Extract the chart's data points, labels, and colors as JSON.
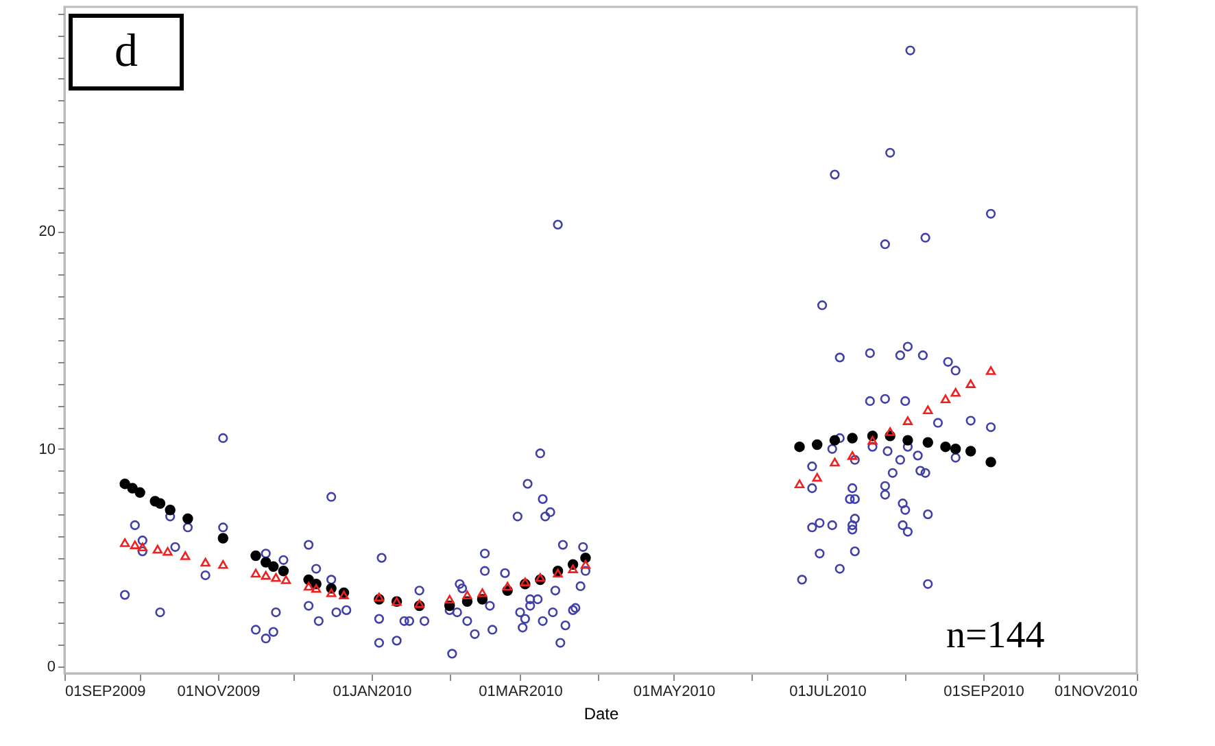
{
  "chart_data": {
    "type": "scatter",
    "xlabel": "Date",
    "annotations": [
      "d",
      "n=144"
    ],
    "xlim": [
      "2009-09-01",
      "2010-11-01"
    ],
    "xticks": [
      {
        "value": "2009-09-01",
        "label": "01SEP2009"
      },
      {
        "value": "2009-10-01",
        "label": null
      },
      {
        "value": "2009-11-01",
        "label": "01NOV2009"
      },
      {
        "value": "2009-12-01",
        "label": null
      },
      {
        "value": "2010-01-01",
        "label": "01JAN2010"
      },
      {
        "value": "2010-02-01",
        "label": null
      },
      {
        "value": "2010-03-01",
        "label": "01MAR2010"
      },
      {
        "value": "2010-04-01",
        "label": null
      },
      {
        "value": "2010-05-01",
        "label": "01MAY2010"
      },
      {
        "value": "2010-06-01",
        "label": null
      },
      {
        "value": "2010-07-01",
        "label": "01JUL2010"
      },
      {
        "value": "2010-08-01",
        "label": null
      },
      {
        "value": "2010-09-01",
        "label": "01SEP2010"
      },
      {
        "value": "2010-10-01",
        "label": null
      },
      {
        "value": "2010-11-01",
        "label": "01NOV2010"
      }
    ],
    "ylim": [
      -0.3,
      30.3
    ],
    "yticks": [
      0,
      {
        "value": 1,
        "label": null
      },
      {
        "value": 2,
        "label": null
      },
      {
        "value": 3,
        "label": null
      },
      {
        "value": 4,
        "label": null
      },
      {
        "value": 5,
        "label": null
      },
      {
        "value": 6,
        "label": null
      },
      {
        "value": 7,
        "label": null
      },
      {
        "value": 8,
        "label": null
      },
      {
        "value": 9,
        "label": null
      },
      10,
      {
        "value": 11,
        "label": null
      },
      {
        "value": 12,
        "label": null
      },
      {
        "value": 13,
        "label": null
      },
      {
        "value": 14,
        "label": null
      },
      {
        "value": 15,
        "label": null
      },
      {
        "value": 16,
        "label": null
      },
      {
        "value": 17,
        "label": null
      },
      {
        "value": 18,
        "label": null
      },
      {
        "value": 19,
        "label": null
      },
      20,
      {
        "value": 21,
        "label": null
      },
      {
        "value": 22,
        "label": null
      },
      {
        "value": 23,
        "label": null
      },
      {
        "value": 24,
        "label": null
      },
      {
        "value": 25,
        "label": null
      },
      {
        "value": 26,
        "label": null
      },
      {
        "value": 27,
        "label": null
      },
      {
        "value": 28,
        "label": null
      },
      {
        "value": 29,
        "label": null
      },
      {
        "value": 30,
        "label": null
      }
    ],
    "grid": false,
    "series": [
      {
        "color": "#4040a8",
        "marker": "circle",
        "x": [
          "2009-09-25",
          "2009-09-29",
          "2009-10-02",
          "2009-10-02",
          "2009-10-09",
          "2009-10-13",
          "2009-10-15",
          "2009-10-20",
          "2009-10-27",
          "2009-11-03",
          "2009-11-03",
          "2009-11-16",
          "2009-11-20",
          "2009-11-20",
          "2009-11-23",
          "2009-11-24",
          "2009-11-27",
          "2009-12-07",
          "2009-12-07",
          "2009-12-10",
          "2009-12-11",
          "2009-12-16",
          "2009-12-16",
          "2009-12-18",
          "2009-12-22",
          "2010-01-04",
          "2010-01-04",
          "2010-01-05",
          "2010-01-11",
          "2010-01-14",
          "2010-01-16",
          "2010-01-20",
          "2010-01-22",
          "2010-02-01",
          "2010-02-02",
          "2010-02-04",
          "2010-02-05",
          "2010-02-06",
          "2010-02-08",
          "2010-02-11",
          "2010-02-15",
          "2010-02-15",
          "2010-02-17",
          "2010-02-18",
          "2010-02-23",
          "2010-02-28",
          "2010-03-01",
          "2010-03-02",
          "2010-03-03",
          "2010-03-04",
          "2010-03-05",
          "2010-03-05",
          "2010-03-08",
          "2010-03-09",
          "2010-03-10",
          "2010-03-10",
          "2010-03-11",
          "2010-03-13",
          "2010-03-14",
          "2010-03-15",
          "2010-03-16",
          "2010-03-17",
          "2010-03-18",
          "2010-03-19",
          "2010-03-22",
          "2010-03-23",
          "2010-03-25",
          "2010-03-26",
          "2010-03-27",
          "2010-08-03",
          "2010-07-26",
          "2010-07-04",
          "2010-09-04",
          "2010-08-09",
          "2010-07-24",
          "2010-06-29",
          "2010-07-06",
          "2010-07-18",
          "2010-07-30",
          "2010-08-02",
          "2010-08-08",
          "2010-08-18",
          "2010-08-21",
          "2010-07-18",
          "2010-07-24",
          "2010-08-01",
          "2010-08-14",
          "2010-08-27",
          "2010-09-04",
          "2010-07-06",
          "2010-07-03",
          "2010-07-19",
          "2010-07-25",
          "2010-08-02",
          "2010-08-06",
          "2010-07-30",
          "2010-08-21",
          "2010-06-25",
          "2010-07-12",
          "2010-06-25",
          "2010-07-11",
          "2010-07-24",
          "2010-07-27",
          "2010-08-07",
          "2010-08-09",
          "2010-07-24",
          "2010-07-10",
          "2010-07-12",
          "2010-07-31",
          "2010-08-01",
          "2010-08-10",
          "2010-07-12",
          "2010-07-11",
          "2010-06-25",
          "2010-06-28",
          "2010-07-03",
          "2010-07-11",
          "2010-07-31",
          "2010-08-02",
          "2010-06-28",
          "2010-07-12",
          "2010-07-06",
          "2010-06-21",
          "2010-08-10"
        ],
        "values": [
          3.3,
          6.5,
          5.8,
          5.3,
          2.5,
          6.9,
          5.5,
          6.4,
          4.2,
          10.5,
          6.4,
          1.7,
          5.2,
          1.3,
          1.6,
          2.5,
          4.9,
          5.6,
          2.8,
          4.5,
          2.1,
          7.8,
          4.0,
          2.5,
          2.6,
          2.2,
          1.1,
          5.0,
          1.2,
          2.1,
          2.1,
          3.5,
          2.1,
          2.6,
          0.6,
          2.5,
          3.8,
          3.6,
          2.1,
          1.5,
          5.2,
          4.4,
          2.8,
          1.7,
          4.3,
          6.9,
          2.5,
          1.8,
          2.2,
          8.4,
          2.8,
          3.1,
          3.1,
          9.8,
          2.1,
          7.7,
          6.9,
          7.1,
          2.5,
          3.5,
          20.3,
          1.1,
          5.6,
          1.9,
          2.6,
          2.7,
          3.7,
          5.5,
          4.4,
          28.3,
          23.6,
          22.6,
          20.8,
          19.7,
          19.4,
          16.6,
          14.2,
          14.4,
          14.3,
          14.7,
          14.3,
          14.0,
          13.6,
          12.2,
          12.3,
          12.2,
          11.2,
          11.3,
          11.0,
          10.5,
          10.0,
          10.1,
          9.9,
          10.1,
          9.7,
          9.5,
          9.6,
          9.2,
          9.5,
          8.2,
          8.2,
          8.3,
          8.9,
          9.0,
          8.9,
          7.9,
          7.7,
          7.7,
          7.5,
          7.2,
          7.0,
          6.8,
          6.5,
          6.4,
          6.6,
          6.5,
          6.3,
          6.5,
          6.2,
          5.2,
          5.3,
          4.5,
          4.0,
          3.8
        ]
      },
      {
        "color": "#000000",
        "marker": "circle",
        "x": [
          "2009-09-25",
          "2009-09-28",
          "2009-10-01",
          "2009-10-07",
          "2009-10-09",
          "2009-10-13",
          "2009-10-20",
          "2009-11-03",
          "2009-11-16",
          "2009-11-20",
          "2009-11-23",
          "2009-11-27",
          "2009-12-07",
          "2009-12-10",
          "2009-12-16",
          "2009-12-21",
          "2010-01-04",
          "2010-01-11",
          "2010-01-20",
          "2010-02-01",
          "2010-02-08",
          "2010-02-14",
          "2010-02-24",
          "2010-03-03",
          "2010-03-09",
          "2010-03-16",
          "2010-03-22",
          "2010-03-27",
          "2010-06-20",
          "2010-06-27",
          "2010-07-04",
          "2010-07-11",
          "2010-07-19",
          "2010-07-26",
          "2010-08-02",
          "2010-08-10",
          "2010-08-17",
          "2010-08-21",
          "2010-08-27",
          "2010-09-04"
        ],
        "values": [
          8.4,
          8.2,
          8.0,
          7.6,
          7.5,
          7.2,
          6.8,
          5.9,
          5.1,
          4.8,
          4.6,
          4.4,
          4.0,
          3.8,
          3.6,
          3.4,
          3.1,
          3.0,
          2.8,
          2.8,
          3.0,
          3.1,
          3.5,
          3.8,
          4.0,
          4.4,
          4.7,
          5.0,
          10.1,
          10.2,
          10.4,
          10.5,
          10.6,
          10.6,
          10.4,
          10.3,
          10.1,
          10.0,
          9.9,
          9.4
        ]
      },
      {
        "color": "#ee2020",
        "marker": "triangle",
        "x": [
          "2009-09-25",
          "2009-09-29",
          "2009-10-02",
          "2009-10-08",
          "2009-10-12",
          "2009-10-19",
          "2009-10-27",
          "2009-11-03",
          "2009-11-16",
          "2009-11-20",
          "2009-11-24",
          "2009-11-28",
          "2009-12-07",
          "2009-12-10",
          "2009-12-16",
          "2009-12-21",
          "2010-01-04",
          "2010-01-11",
          "2010-01-20",
          "2010-02-01",
          "2010-02-08",
          "2010-02-14",
          "2010-02-24",
          "2010-03-03",
          "2010-03-09",
          "2010-03-16",
          "2010-03-22",
          "2010-03-27",
          "2010-06-20",
          "2010-06-27",
          "2010-07-04",
          "2010-07-11",
          "2010-07-19",
          "2010-07-26",
          "2010-08-02",
          "2010-08-10",
          "2010-08-17",
          "2010-08-21",
          "2010-08-27",
          "2010-09-04"
        ],
        "values": [
          5.7,
          5.6,
          5.5,
          5.4,
          5.3,
          5.1,
          4.8,
          4.7,
          4.3,
          4.2,
          4.1,
          4.0,
          3.7,
          3.6,
          3.4,
          3.3,
          3.2,
          3.0,
          2.9,
          3.1,
          3.3,
          3.4,
          3.7,
          3.9,
          4.1,
          4.3,
          4.5,
          4.7,
          8.4,
          8.7,
          9.4,
          9.7,
          10.4,
          10.8,
          11.3,
          11.8,
          12.3,
          12.6,
          13.0,
          13.6
        ]
      }
    ]
  }
}
